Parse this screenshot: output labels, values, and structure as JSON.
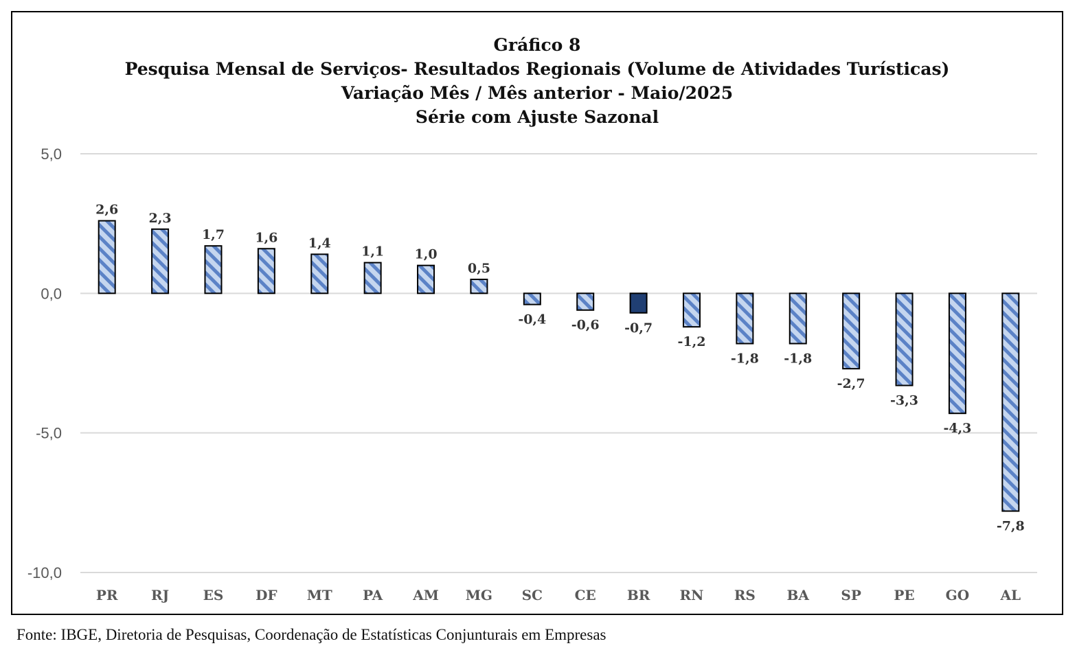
{
  "chart_data": {
    "type": "bar",
    "title": "Gráfico 8",
    "subtitle_lines": [
      "Pesquisa Mensal de Serviços- Resultados Regionais (Volume de Atividades Turísticas)",
      "Variação Mês / Mês anterior - Maio/2025",
      "Série com Ajuste Sazonal"
    ],
    "categories": [
      "PR",
      "RJ",
      "ES",
      "DF",
      "MT",
      "PA",
      "AM",
      "MG",
      "SC",
      "CE",
      "BR",
      "RN",
      "RS",
      "BA",
      "SP",
      "PE",
      "GO",
      "AL"
    ],
    "values": [
      2.6,
      2.3,
      1.7,
      1.6,
      1.4,
      1.1,
      1.0,
      0.5,
      -0.4,
      -0.6,
      -0.7,
      -1.2,
      -1.8,
      -1.8,
      -2.7,
      -3.3,
      -4.3,
      -7.8
    ],
    "data_labels": [
      "2,6",
      "2,3",
      "1,7",
      "1,6",
      "1,4",
      "1,1",
      "1,0",
      "0,5",
      "-0,4",
      "-0,6",
      "-0,7",
      "-1,2",
      "-1,8",
      "-1,8",
      "-2,7",
      "-3,3",
      "-4,3",
      "-7,8"
    ],
    "highlight_category": "BR",
    "yticks": [
      5,
      0,
      -5,
      -10
    ],
    "ytick_labels": [
      "5,0",
      "0,0",
      "-5,0",
      "-10,0"
    ],
    "ylim": [
      -10,
      5
    ],
    "grid": true,
    "legend": "none",
    "colors": {
      "bar_fill": "#c5d6ef",
      "bar_stripe": "#5b82c6",
      "highlight_fill": "#203f73",
      "grid": "#d9d9d9",
      "axis_text": "#595959"
    }
  },
  "footer": {
    "source": "Fonte: IBGE, Diretoria de Pesquisas, Coordenação de Estatísticas Conjunturais em Empresas"
  }
}
